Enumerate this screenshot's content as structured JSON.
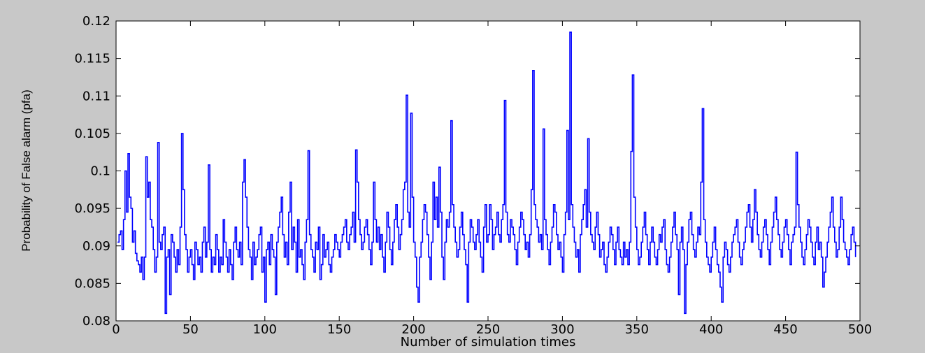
{
  "chart_data": {
    "type": "line",
    "title": "",
    "xlabel": "Number of simulation times",
    "ylabel": "Probability of False alarm (pfa)",
    "xlim": [
      0,
      500
    ],
    "ylim": [
      0.08,
      0.12
    ],
    "xticks": [
      0,
      50,
      100,
      150,
      200,
      250,
      300,
      350,
      400,
      450,
      500
    ],
    "xtick_labels": [
      "0",
      "50",
      "100",
      "150",
      "200",
      "250",
      "300",
      "350",
      "400",
      "450",
      "500"
    ],
    "yticks": [
      0.08,
      0.085,
      0.09,
      0.095,
      0.1,
      0.105,
      0.11,
      0.115,
      0.12
    ],
    "ytick_labels": [
      "0.08",
      "0.085",
      "0.09",
      "0.095",
      "0.1",
      "0.105",
      "0.11",
      "0.115",
      "0.12"
    ],
    "grid": false,
    "legend": "none",
    "colors": {
      "line": "#0000ff",
      "axes_bg": "#ffffff",
      "figure_bg": "#c8c8c8"
    },
    "series": [
      {
        "x_start": 1,
        "x_step": 1,
        "values": [
          0.0905,
          0.0915,
          0.092,
          0.0895,
          0.0935,
          0.1,
          0.0945,
          0.1023,
          0.0965,
          0.095,
          0.0905,
          0.092,
          0.089,
          0.088,
          0.0875,
          0.0865,
          0.0885,
          0.0855,
          0.0885,
          0.1019,
          0.0965,
          0.0985,
          0.0935,
          0.0925,
          0.0895,
          0.0865,
          0.0885,
          0.1038,
          0.0905,
          0.0895,
          0.0915,
          0.0925,
          0.081,
          0.0885,
          0.0895,
          0.0835,
          0.0915,
          0.0905,
          0.0885,
          0.0865,
          0.0895,
          0.0875,
          0.0925,
          0.105,
          0.0975,
          0.0915,
          0.0895,
          0.0865,
          0.0885,
          0.0895,
          0.0875,
          0.0855,
          0.0905,
          0.0895,
          0.0875,
          0.0885,
          0.0865,
          0.0905,
          0.0925,
          0.0885,
          0.0905,
          0.1008,
          0.0895,
          0.0865,
          0.0885,
          0.0875,
          0.0915,
          0.0895,
          0.0865,
          0.0885,
          0.0875,
          0.0935,
          0.0905,
          0.0885,
          0.0865,
          0.0895,
          0.0875,
          0.0855,
          0.0905,
          0.0925,
          0.0895,
          0.0885,
          0.0905,
          0.0875,
          0.0985,
          0.1015,
          0.0965,
          0.0925,
          0.0895,
          0.0885,
          0.0855,
          0.0905,
          0.0875,
          0.0885,
          0.0895,
          0.0915,
          0.0925,
          0.0865,
          0.0885,
          0.0825,
          0.0895,
          0.0905,
          0.0875,
          0.0915,
          0.0895,
          0.0885,
          0.0835,
          0.0905,
          0.0925,
          0.0945,
          0.0965,
          0.0915,
          0.0885,
          0.0905,
          0.0875,
          0.0945,
          0.0985,
          0.0895,
          0.0925,
          0.0905,
          0.0865,
          0.0935,
          0.0885,
          0.0895,
          0.0875,
          0.0855,
          0.0905,
          0.0935,
          0.1027,
          0.0915,
          0.0895,
          0.0885,
          0.0865,
          0.0905,
          0.0895,
          0.0925,
          0.0855,
          0.0875,
          0.0915,
          0.0885,
          0.0895,
          0.0905,
          0.0875,
          0.0865,
          0.0885,
          0.0895,
          0.0915,
          0.0905,
          0.0895,
          0.0885,
          0.0905,
          0.0915,
          0.0925,
          0.0935,
          0.0905,
          0.0895,
          0.0915,
          0.0925,
          0.0945,
          0.0905,
          0.1028,
          0.0985,
          0.0935,
          0.0915,
          0.0895,
          0.0905,
          0.0925,
          0.0935,
          0.0915,
          0.0895,
          0.0875,
          0.0905,
          0.0985,
          0.0935,
          0.0905,
          0.0925,
          0.0895,
          0.0915,
          0.0885,
          0.0865,
          0.0905,
          0.0945,
          0.0925,
          0.0895,
          0.0875,
          0.0905,
          0.0935,
          0.0955,
          0.0925,
          0.0895,
          0.0915,
          0.0935,
          0.0975,
          0.0985,
          0.1101,
          0.0945,
          0.0925,
          0.1077,
          0.0965,
          0.0905,
          0.0885,
          0.0845,
          0.0825,
          0.0885,
          0.0905,
          0.0935,
          0.0955,
          0.0945,
          0.0915,
          0.0885,
          0.0855,
          0.0905,
          0.0985,
          0.0935,
          0.0965,
          0.0925,
          0.1005,
          0.0945,
          0.0885,
          0.0855,
          0.0905,
          0.0935,
          0.0925,
          0.0945,
          0.1067,
          0.0955,
          0.0925,
          0.0905,
          0.0885,
          0.0895,
          0.0925,
          0.0945,
          0.0915,
          0.0895,
          0.0875,
          0.0825,
          0.0905,
          0.0935,
          0.0925,
          0.0905,
          0.0895,
          0.0915,
          0.0935,
          0.0905,
          0.0885,
          0.0865,
          0.0925,
          0.0955,
          0.0905,
          0.0915,
          0.0955,
          0.0935,
          0.0895,
          0.0915,
          0.0925,
          0.0945,
          0.0915,
          0.0905,
          0.0935,
          0.0955,
          0.1094,
          0.0945,
          0.0915,
          0.0905,
          0.0935,
          0.0925,
          0.0915,
          0.0895,
          0.0875,
          0.0905,
          0.0925,
          0.0945,
          0.0935,
          0.0915,
          0.0895,
          0.0905,
          0.0885,
          0.0915,
          0.0975,
          0.1134,
          0.0955,
          0.0935,
          0.0925,
          0.0905,
          0.0915,
          0.0895,
          0.1056,
          0.0935,
          0.0915,
          0.0895,
          0.0875,
          0.0905,
          0.0925,
          0.0955,
          0.0945,
          0.0915,
          0.0895,
          0.0905,
          0.0885,
          0.0865,
          0.0915,
          0.0945,
          0.1054,
          0.0935,
          0.1185,
          0.0955,
          0.0925,
          0.0905,
          0.0885,
          0.0895,
          0.0865,
          0.0915,
          0.0935,
          0.0955,
          0.0975,
          0.0925,
          0.1043,
          0.0945,
          0.0915,
          0.0905,
          0.0895,
          0.0925,
          0.0945,
          0.0915,
          0.0885,
          0.0895,
          0.0905,
          0.0875,
          0.0865,
          0.0885,
          0.0905,
          0.0925,
          0.0915,
          0.0895,
          0.0875,
          0.0905,
          0.0925,
          0.0895,
          0.0885,
          0.0875,
          0.0905,
          0.0885,
          0.0895,
          0.0875,
          0.0905,
          0.1026,
          0.1128,
          0.0965,
          0.0925,
          0.0895,
          0.0875,
          0.0885,
          0.0905,
          0.0925,
          0.0945,
          0.0915,
          0.0895,
          0.0875,
          0.0905,
          0.0925,
          0.0905,
          0.0885,
          0.0875,
          0.0895,
          0.0915,
          0.0905,
          0.0925,
          0.0935,
          0.0895,
          0.0875,
          0.0865,
          0.0885,
          0.0905,
          0.0925,
          0.0945,
          0.0915,
          0.0895,
          0.0835,
          0.0905,
          0.0925,
          0.0895,
          0.081,
          0.0875,
          0.0905,
          0.0935,
          0.0945,
          0.0915,
          0.0895,
          0.0885,
          0.0905,
          0.0925,
          0.0915,
          0.0985,
          0.1083,
          0.0935,
          0.0905,
          0.0885,
          0.0875,
          0.0865,
          0.0885,
          0.0905,
          0.0925,
          0.0895,
          0.0875,
          0.0865,
          0.0845,
          0.0825,
          0.0885,
          0.0905,
          0.0895,
          0.0875,
          0.0865,
          0.0885,
          0.0905,
          0.0915,
          0.0925,
          0.0935,
          0.0905,
          0.0885,
          0.0875,
          0.0895,
          0.0905,
          0.0925,
          0.0945,
          0.0955,
          0.0925,
          0.0905,
          0.0935,
          0.0975,
          0.0945,
          0.0915,
          0.0895,
          0.0885,
          0.0905,
          0.0925,
          0.0935,
          0.0915,
          0.0895,
          0.0875,
          0.0905,
          0.0925,
          0.0945,
          0.0965,
          0.0935,
          0.0915,
          0.0895,
          0.0885,
          0.0905,
          0.0925,
          0.0935,
          0.0915,
          0.0895,
          0.0875,
          0.0905,
          0.0915,
          0.0925,
          0.1025,
          0.0955,
          0.0925,
          0.0905,
          0.0885,
          0.0875,
          0.0895,
          0.0915,
          0.0935,
          0.0925,
          0.0905,
          0.0885,
          0.0875,
          0.0905,
          0.0925,
          0.0895,
          0.0905,
          0.0885,
          0.0845,
          0.0865,
          0.0885,
          0.0905,
          0.0925,
          0.0945,
          0.0965,
          0.0925,
          0.0905,
          0.0885,
          0.0895,
          0.0925,
          0.0965,
          0.0935,
          0.0905,
          0.0895,
          0.0885,
          0.0875,
          0.0895,
          0.0915,
          0.0925,
          0.0905,
          0.0885
        ]
      }
    ]
  }
}
